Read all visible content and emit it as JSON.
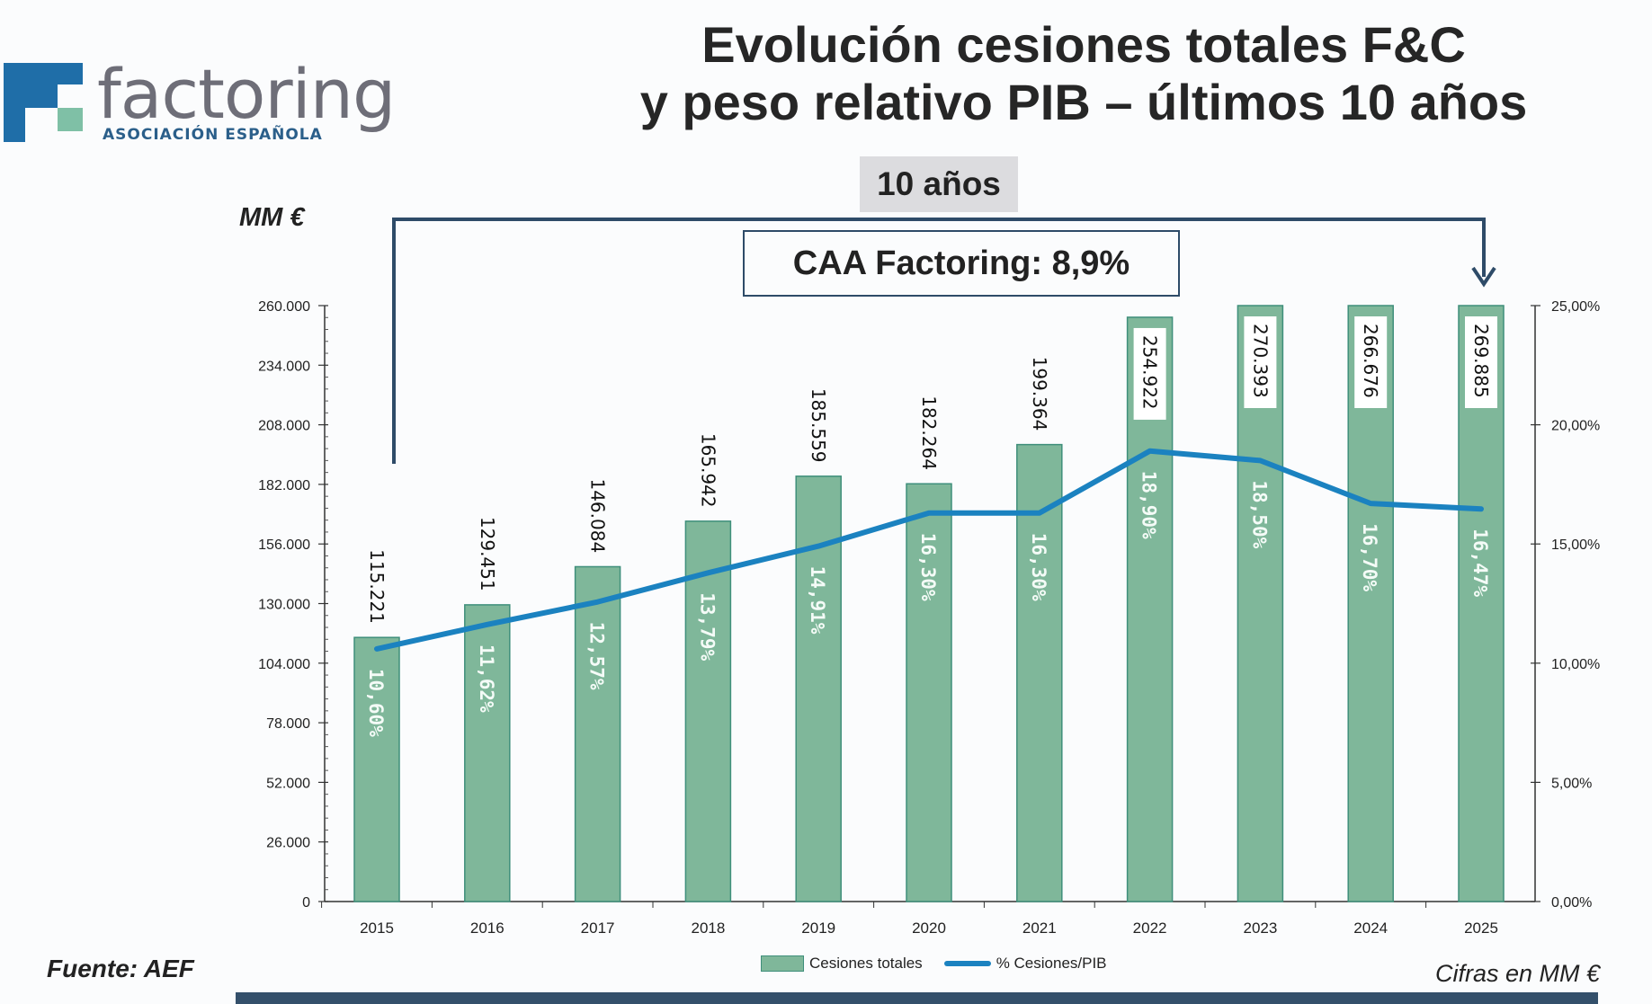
{
  "logo": {
    "name": "factoring",
    "subtitle": "ASOCIACIÓN ESPAÑOLA"
  },
  "header": {
    "title_line1": "Evolución cesiones totales F&C",
    "title_line2": "y peso relativo PIB – últimos 10 años"
  },
  "annotations": {
    "period_badge": "10 años",
    "caa_label": "CAA Factoring: 8,9%",
    "unit_label": "MM €"
  },
  "footer": {
    "source": "Fuente: AEF",
    "units_note": "Cifras en MM €"
  },
  "colors": {
    "bar_fill": "#7fb79a",
    "bar_border": "#3f8f7b",
    "line": "#1b82c0",
    "bracket": "#2e4b68",
    "bottom_bar": "#34506b"
  },
  "chart_data": {
    "type": "bar",
    "title": "Evolución cesiones totales F&C y peso relativo PIB – últimos 10 años",
    "xlabel": "",
    "ylabel": "MM €",
    "y2label": "% Cesiones/PIB",
    "categories": [
      "2015",
      "2016",
      "2017",
      "2018",
      "2019",
      "2020",
      "2021",
      "2022",
      "2023",
      "2024",
      "2025"
    ],
    "series": [
      {
        "name": "Cesiones totales",
        "type": "bar",
        "axis": "left",
        "values": [
          115221,
          129451,
          146084,
          165942,
          185559,
          182264,
          199364,
          254922,
          270393,
          266676,
          269885
        ],
        "labels": [
          "115.221",
          "129.451",
          "146.084",
          "165.942",
          "185.559",
          "182.264",
          "199.364",
          "254.922",
          "270.393",
          "266.676",
          "269.885"
        ]
      },
      {
        "name": "% Cesiones/PIB",
        "type": "line",
        "axis": "right",
        "values": [
          10.6,
          11.62,
          12.57,
          13.79,
          14.91,
          16.3,
          16.3,
          18.9,
          18.5,
          16.7,
          16.47
        ],
        "labels": [
          "10,60%",
          "11,62%",
          "12,57%",
          "13,79%",
          "14,91%",
          "16,30%",
          "16,30%",
          "18,90%",
          "18,50%",
          "16,70%",
          "16,47%"
        ]
      }
    ],
    "ylim": [
      0,
      260000
    ],
    "y2lim": [
      0,
      25
    ],
    "yticks": [
      "0",
      "26.000",
      "52.000",
      "78.000",
      "104.000",
      "130.000",
      "156.000",
      "182.000",
      "208.000",
      "234.000",
      "260.000"
    ],
    "y2ticks": [
      "0,00%",
      "5,00%",
      "10,00%",
      "15,00%",
      "20,00%",
      "25,00%"
    ],
    "grid": false,
    "legend": "bottom-center",
    "legend_entries": [
      "Cesiones totales",
      "% Cesiones/PIB"
    ]
  }
}
